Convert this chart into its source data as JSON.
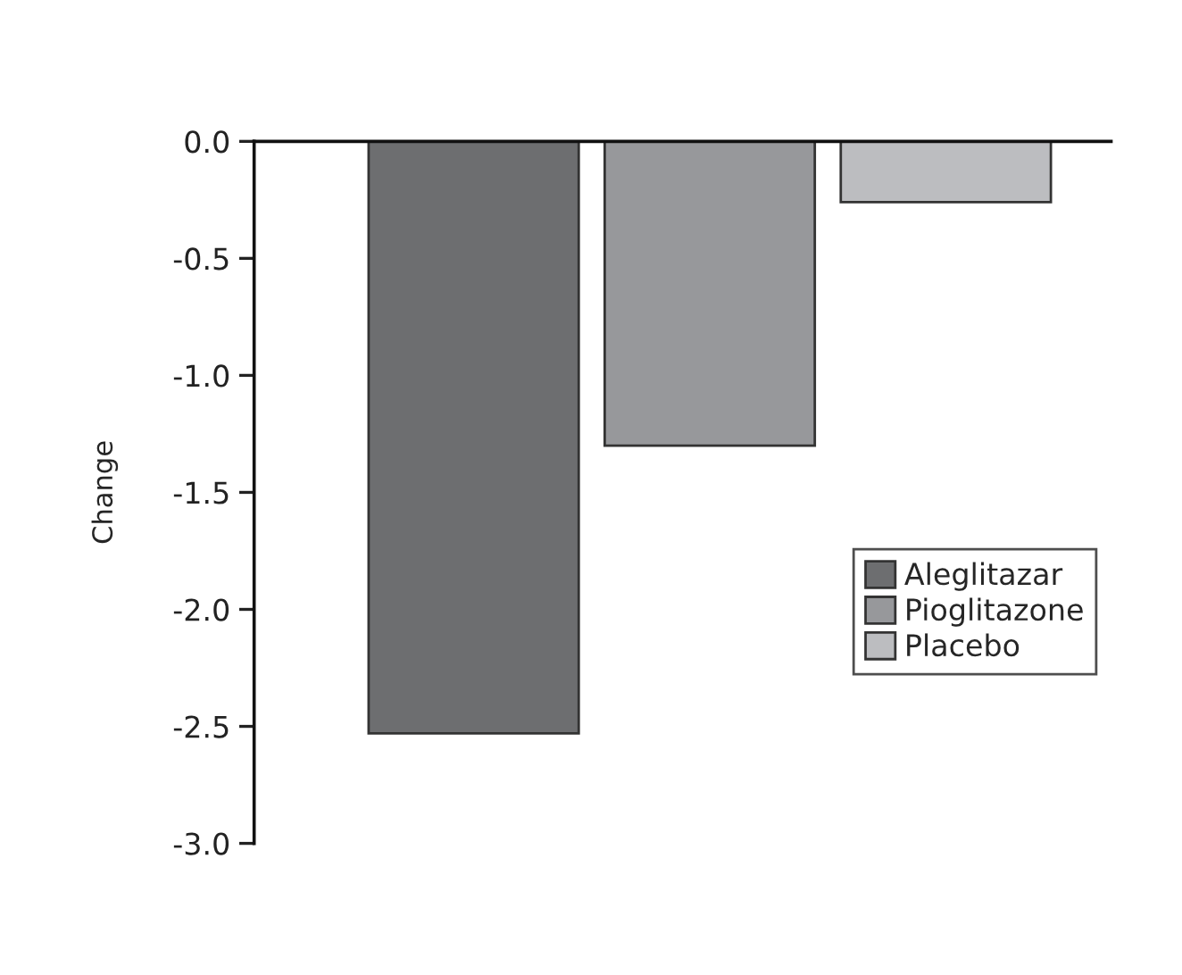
{
  "chart_data": {
    "type": "bar",
    "ylabel": "Change",
    "categories": [
      null,
      null,
      null
    ],
    "series": [
      {
        "name": "Aleglitazar",
        "color": "#6d6e70",
        "values": [
          -2.53,
          null,
          null
        ]
      },
      {
        "name": "Pioglitazone",
        "color": "#97989b",
        "values": [
          null,
          -1.3,
          null
        ]
      },
      {
        "name": "Placebo",
        "color": "#bcbdc0",
        "values": [
          null,
          null,
          -0.26
        ]
      }
    ],
    "ylim": [
      -3.0,
      0.0
    ],
    "yticks": [
      {
        "value": 0,
        "label": "0.0"
      },
      {
        "value": -0.5,
        "label": "-0.5"
      },
      {
        "value": -1.0,
        "label": "-1.0"
      },
      {
        "value": -1.5,
        "label": "-1.5"
      },
      {
        "value": -2.0,
        "label": "-2.0"
      },
      {
        "value": -2.5,
        "label": "-2.5"
      },
      {
        "value": -3.0,
        "label": "-3.0"
      }
    ],
    "grid": false,
    "legend": "right",
    "tick_labels": "y"
  }
}
